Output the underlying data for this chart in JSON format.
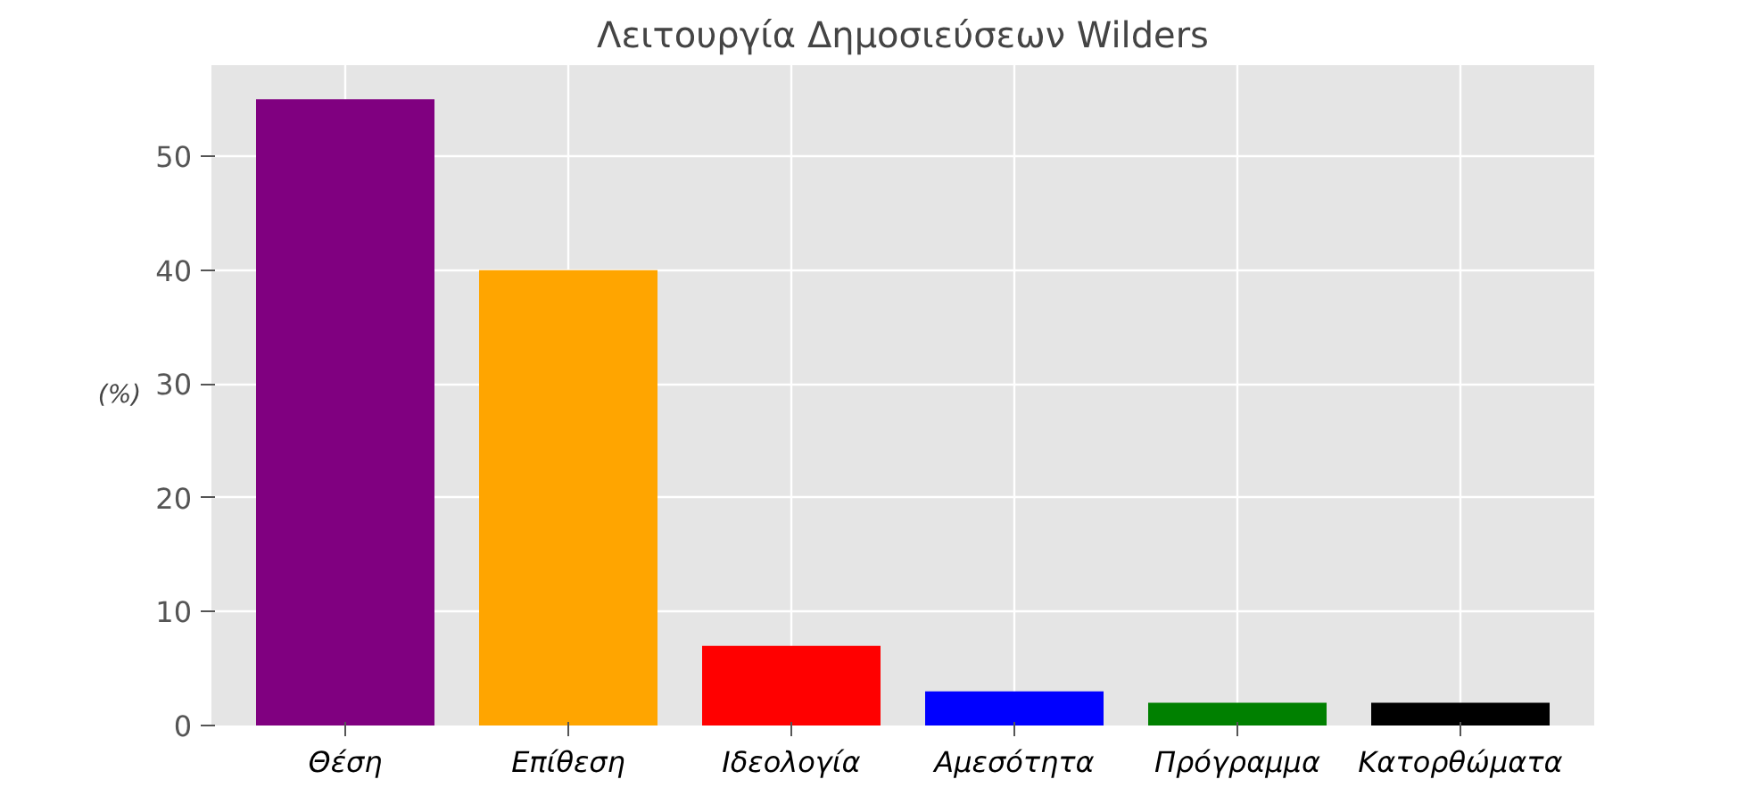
{
  "chart_data": {
    "type": "bar",
    "title": "Λειτουργία Δημοσιεύσεων Wilders",
    "ylabel": "(%)",
    "categories": [
      "Θέση",
      "Επίθεση",
      "Ιδεολογία",
      "Αμεσότητα",
      "Πρόγραμμα",
      "Κατορθώματα"
    ],
    "values": [
      55,
      40,
      7,
      3,
      2,
      2
    ],
    "colors": [
      "#800080",
      "#ffa500",
      "#ff0000",
      "#0000ff",
      "#008000",
      "#000000"
    ],
    "ylim": [
      0,
      58
    ],
    "yticks": [
      0,
      10,
      20,
      30,
      40,
      50
    ],
    "grid": true
  }
}
